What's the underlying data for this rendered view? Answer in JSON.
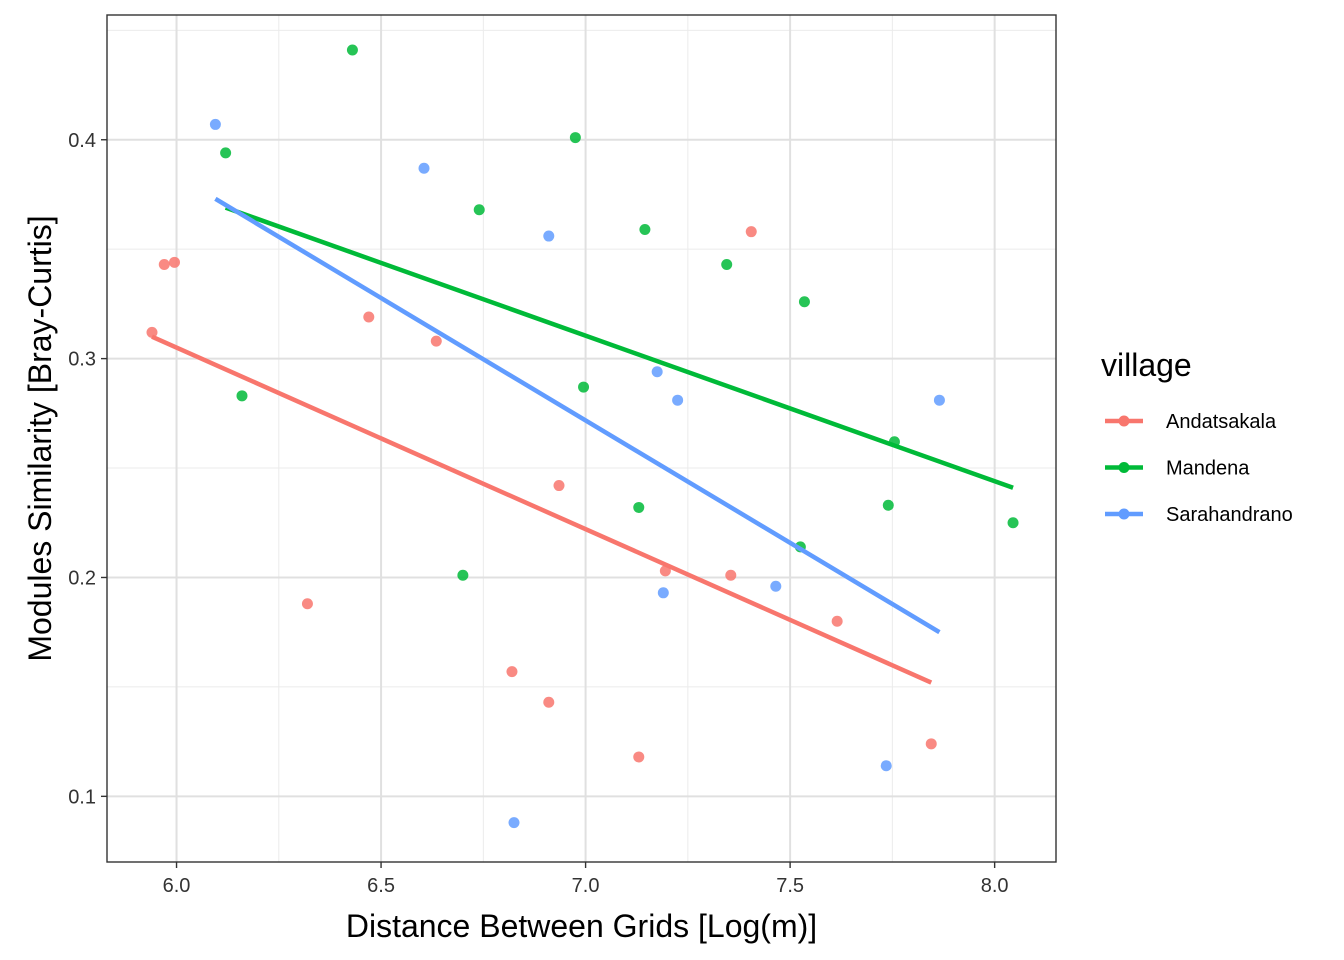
{
  "chart_data": {
    "type": "scatter",
    "title": "",
    "xlabel": "Distance Between Grids [Log(m)]",
    "ylabel": "Modules Similarity [Bray-Curtis]",
    "xlim": [
      5.83,
      8.15
    ],
    "ylim": [
      0.07,
      0.457
    ],
    "x_ticks": [
      6.0,
      6.5,
      7.0,
      7.5,
      8.0
    ],
    "x_tick_labels": [
      "6.0",
      "6.5",
      "7.0",
      "7.5",
      "8.0"
    ],
    "y_ticks": [
      0.1,
      0.2,
      0.3,
      0.4
    ],
    "y_tick_labels": [
      "0.1",
      "0.2",
      "0.3",
      "0.4"
    ],
    "grid": true,
    "legend": {
      "title": "village",
      "position": "right"
    },
    "series": [
      {
        "name": "Andatsakala",
        "color": "#F8766D",
        "points": [
          [
            5.94,
            0.312
          ],
          [
            5.97,
            0.343
          ],
          [
            5.995,
            0.344
          ],
          [
            6.32,
            0.188
          ],
          [
            6.47,
            0.319
          ],
          [
            6.635,
            0.308
          ],
          [
            6.82,
            0.157
          ],
          [
            6.91,
            0.143
          ],
          [
            6.935,
            0.242
          ],
          [
            7.13,
            0.118
          ],
          [
            7.195,
            0.203
          ],
          [
            7.355,
            0.201
          ],
          [
            7.405,
            0.358
          ],
          [
            7.615,
            0.18
          ],
          [
            7.845,
            0.124
          ]
        ],
        "trend": [
          [
            5.94,
            0.31
          ],
          [
            7.845,
            0.152
          ]
        ]
      },
      {
        "name": "Mandena",
        "color": "#00BA38",
        "points": [
          [
            6.12,
            0.394
          ],
          [
            6.16,
            0.283
          ],
          [
            6.43,
            0.441
          ],
          [
            6.7,
            0.201
          ],
          [
            6.74,
            0.368
          ],
          [
            6.975,
            0.401
          ],
          [
            6.995,
            0.287
          ],
          [
            7.13,
            0.232
          ],
          [
            7.145,
            0.359
          ],
          [
            7.345,
            0.343
          ],
          [
            7.525,
            0.214
          ],
          [
            7.535,
            0.326
          ],
          [
            7.74,
            0.233
          ],
          [
            7.755,
            0.262
          ],
          [
            8.045,
            0.225
          ]
        ],
        "trend": [
          [
            6.12,
            0.369
          ],
          [
            8.045,
            0.241
          ]
        ]
      },
      {
        "name": "Sarahandrano",
        "color": "#619CFF",
        "points": [
          [
            6.095,
            0.407
          ],
          [
            6.605,
            0.387
          ],
          [
            6.825,
            0.088
          ],
          [
            6.91,
            0.356
          ],
          [
            7.175,
            0.294
          ],
          [
            7.19,
            0.193
          ],
          [
            7.225,
            0.281
          ],
          [
            7.465,
            0.196
          ],
          [
            7.735,
            0.114
          ],
          [
            7.865,
            0.281
          ]
        ],
        "trend": [
          [
            6.095,
            0.373
          ],
          [
            7.865,
            0.175
          ]
        ]
      }
    ]
  }
}
